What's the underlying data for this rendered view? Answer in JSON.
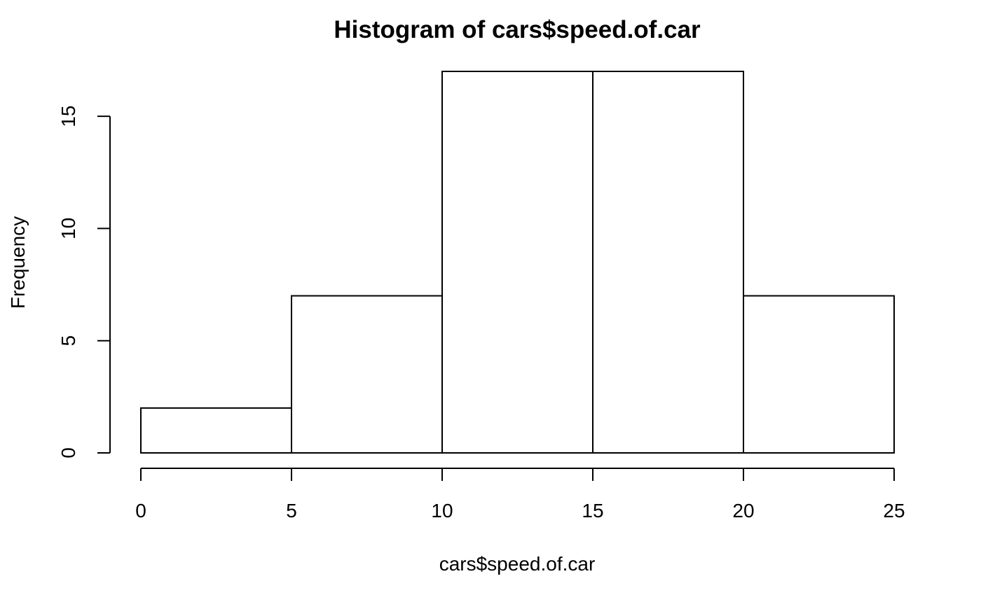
{
  "chart_data": {
    "type": "bar",
    "title": "Histogram of cars$speed.of.car",
    "xlabel": "cars$speed.of.car",
    "ylabel": "Frequency",
    "bins": [
      {
        "start": 0,
        "end": 5,
        "count": 2
      },
      {
        "start": 5,
        "end": 10,
        "count": 7
      },
      {
        "start": 10,
        "end": 15,
        "count": 17
      },
      {
        "start": 15,
        "end": 20,
        "count": 17
      },
      {
        "start": 20,
        "end": 25,
        "count": 7
      }
    ],
    "x_ticks": [
      0,
      5,
      10,
      15,
      20,
      25
    ],
    "y_ticks": [
      0,
      5,
      10,
      15
    ],
    "xlim": [
      0,
      25
    ],
    "ylim": [
      0,
      17
    ],
    "grid": false,
    "legend": "none",
    "colors": {
      "bar_fill": "#ffffff",
      "bar_stroke": "#000000",
      "axis": "#000000",
      "background": "#ffffff"
    }
  }
}
